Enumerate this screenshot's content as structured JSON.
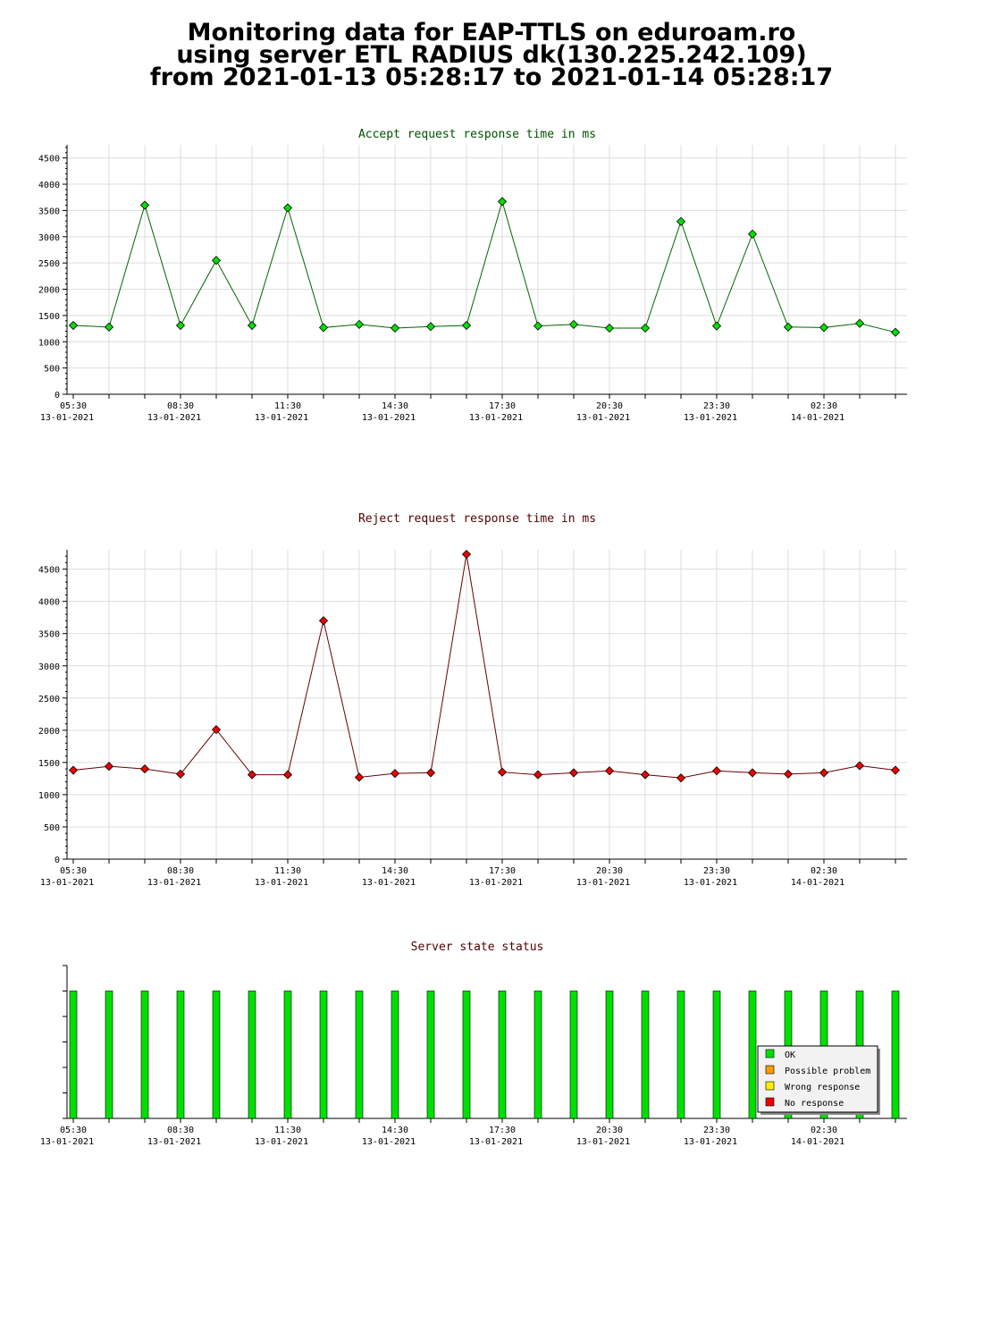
{
  "title_lines": [
    "Monitoring data for EAP-TTLS on eduroam.ro",
    "using server ETL RADIUS dk(130.225.242.109)",
    "from 2021-01-13 05:28:17 to 2021-01-14 05:28:17"
  ],
  "colors": {
    "accept_line": "#006600",
    "accept_marker": "#00e000",
    "reject_line": "#660000",
    "reject_marker": "#ee0000",
    "accept_title": "#005000",
    "reject_title": "#500000",
    "status_title": "#500000",
    "status_ok": "#00e000"
  },
  "chart_data": [
    {
      "type": "line",
      "title": "Accept request response time in ms",
      "ylim": [
        0,
        4750
      ],
      "yticks": [
        0,
        500,
        1000,
        1500,
        2000,
        2500,
        3000,
        3500,
        4000,
        4500
      ],
      "xlim_hours": [
        0,
        24
      ],
      "xtick_labels": [
        {
          "time": "05:30",
          "date": "13-01-2021"
        },
        {
          "time": "08:30",
          "date": "13-01-2021"
        },
        {
          "time": "11:30",
          "date": "13-01-2021"
        },
        {
          "time": "14:30",
          "date": "13-01-2021"
        },
        {
          "time": "17:30",
          "date": "13-01-2021"
        },
        {
          "time": "20:30",
          "date": "13-01-2021"
        },
        {
          "time": "23:30",
          "date": "13-01-2021"
        },
        {
          "time": "02:30",
          "date": "14-01-2021"
        }
      ],
      "grid": true,
      "series": [
        {
          "values": [
            1310,
            1280,
            3600,
            1310,
            2550,
            1310,
            3550,
            1270,
            1330,
            1260,
            1290,
            1310,
            3670,
            1300,
            1330,
            1260,
            1260,
            3290,
            1300,
            3050,
            1280,
            1270,
            1350,
            1180
          ]
        }
      ]
    },
    {
      "type": "line",
      "title": "Reject request response time in ms",
      "ylim": [
        0,
        4800
      ],
      "yticks": [
        0,
        500,
        1000,
        1500,
        2000,
        2500,
        3000,
        3500,
        4000,
        4500
      ],
      "xlim_hours": [
        0,
        24
      ],
      "xtick_labels": [
        {
          "time": "05:30",
          "date": "13-01-2021"
        },
        {
          "time": "08:30",
          "date": "13-01-2021"
        },
        {
          "time": "11:30",
          "date": "13-01-2021"
        },
        {
          "time": "14:30",
          "date": "13-01-2021"
        },
        {
          "time": "17:30",
          "date": "13-01-2021"
        },
        {
          "time": "20:30",
          "date": "13-01-2021"
        },
        {
          "time": "23:30",
          "date": "13-01-2021"
        },
        {
          "time": "02:30",
          "date": "14-01-2021"
        }
      ],
      "grid": true,
      "series": [
        {
          "values": [
            1380,
            1440,
            1400,
            1320,
            2010,
            1310,
            1310,
            3700,
            1270,
            1330,
            1340,
            4730,
            1350,
            1310,
            1340,
            1370,
            1310,
            1260,
            1370,
            1340,
            1320,
            1340,
            1450,
            1380
          ]
        }
      ]
    },
    {
      "type": "bar",
      "title": "Server state status",
      "ylim": [
        0,
        1.2
      ],
      "xtick_labels": [
        {
          "time": "05:30",
          "date": "13-01-2021"
        },
        {
          "time": "08:30",
          "date": "13-01-2021"
        },
        {
          "time": "11:30",
          "date": "13-01-2021"
        },
        {
          "time": "14:30",
          "date": "13-01-2021"
        },
        {
          "time": "17:30",
          "date": "13-01-2021"
        },
        {
          "time": "20:30",
          "date": "13-01-2021"
        },
        {
          "time": "23:30",
          "date": "13-01-2021"
        },
        {
          "time": "02:30",
          "date": "14-01-2021"
        }
      ],
      "values": [
        1,
        1,
        1,
        1,
        1,
        1,
        1,
        1,
        1,
        1,
        1,
        1,
        1,
        1,
        1,
        1,
        1,
        1,
        1,
        1,
        1,
        1,
        1,
        1
      ],
      "legend_position": "right",
      "legend": [
        {
          "label": "OK",
          "color": "#00e000"
        },
        {
          "label": "Possible problem",
          "color": "#ff9900"
        },
        {
          "label": "Wrong response",
          "color": "#ffee00"
        },
        {
          "label": "No response",
          "color": "#ee0000"
        }
      ]
    }
  ]
}
